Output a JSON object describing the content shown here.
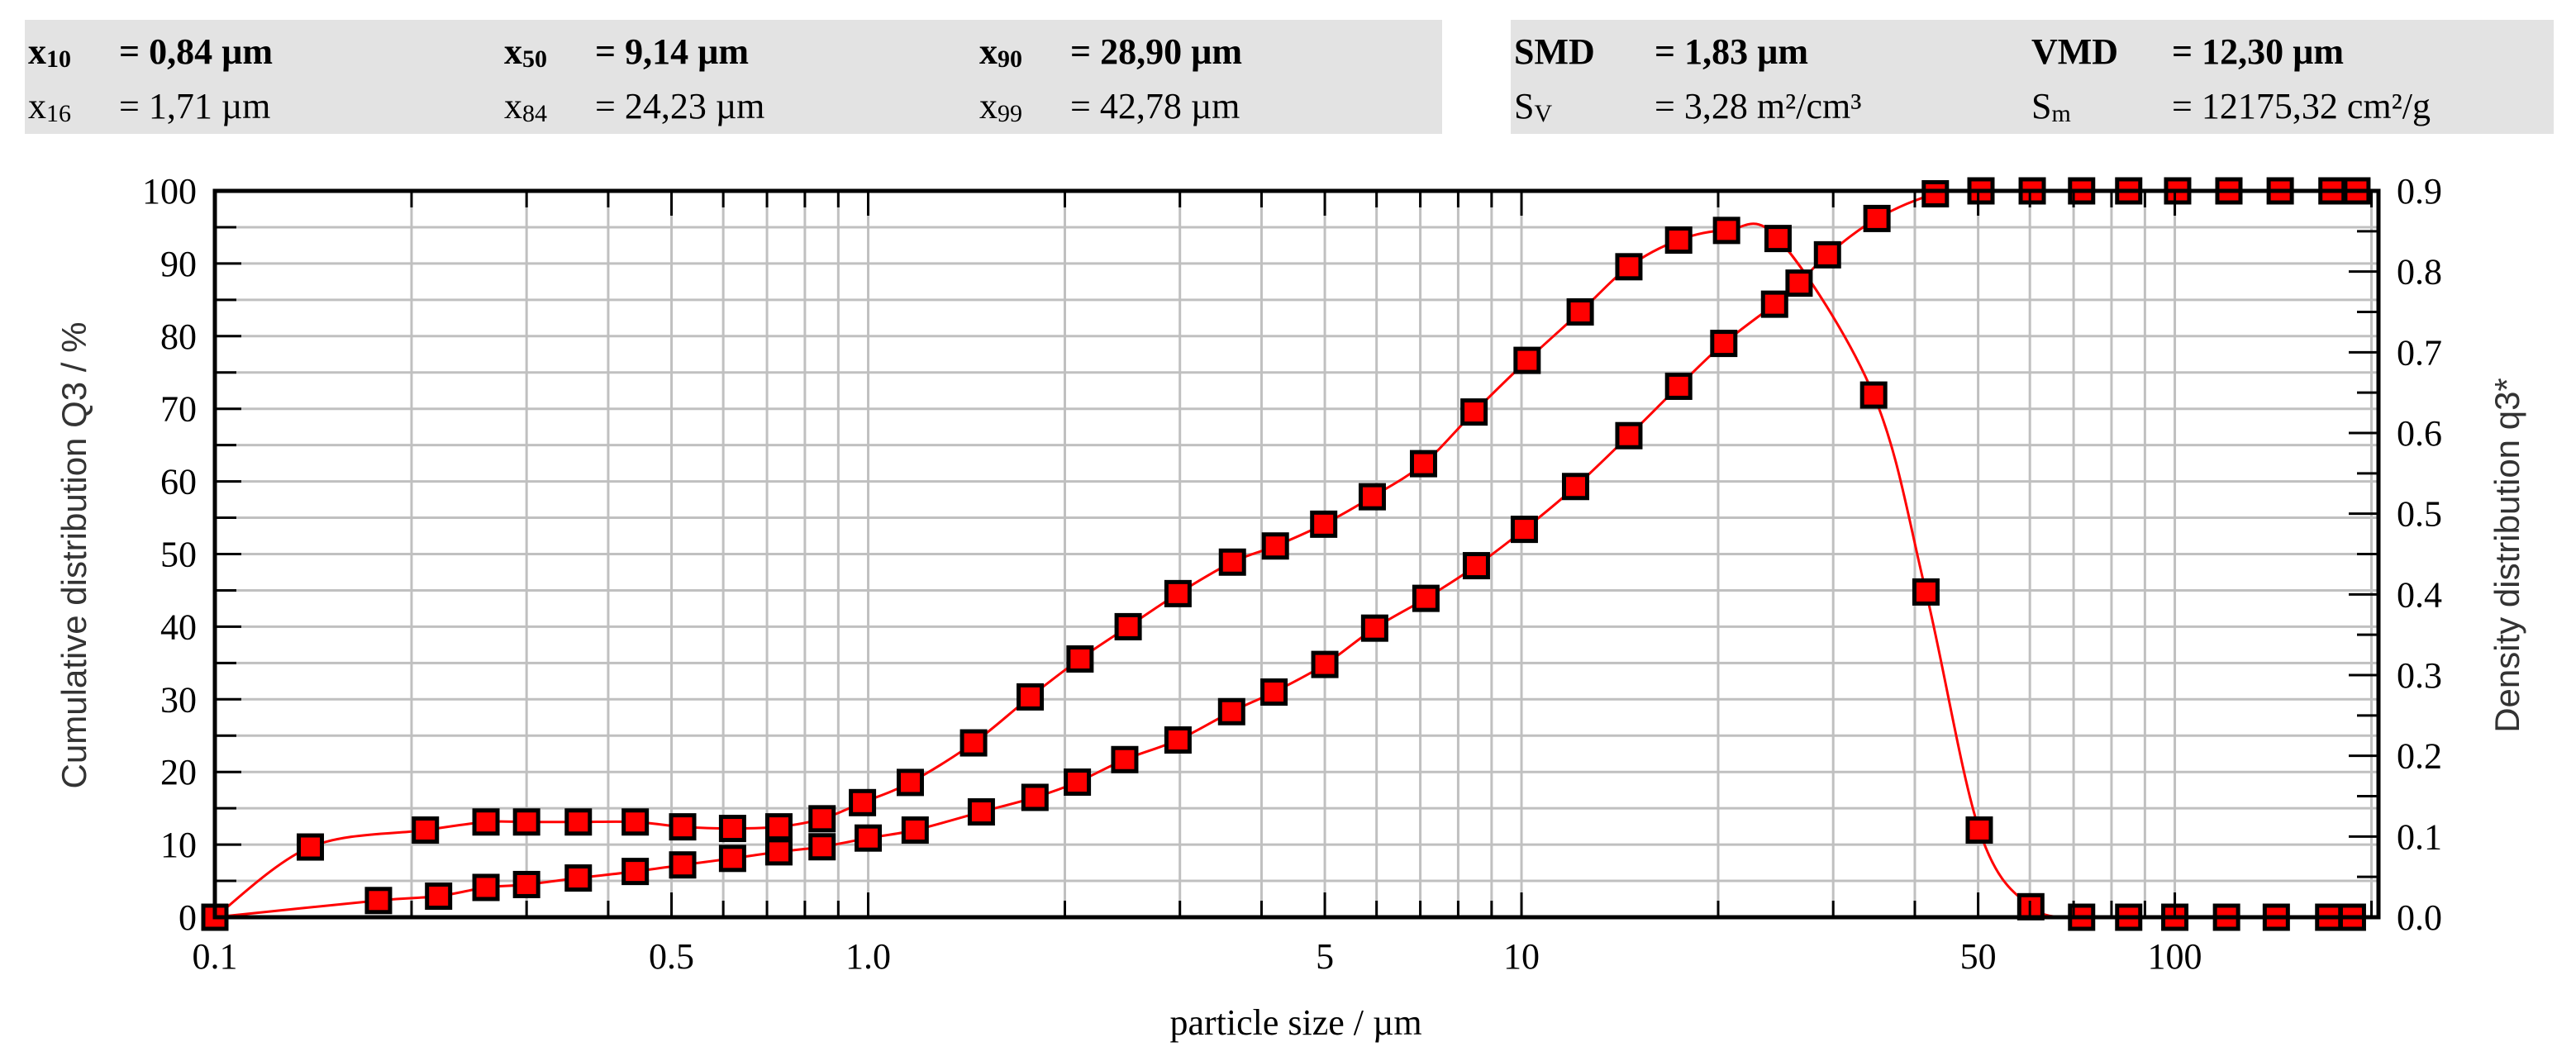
{
  "stats": {
    "left": [
      {
        "sym": "x",
        "sub": "10",
        "value": "= 0,84 µm",
        "bold": true,
        "row": 0,
        "col": 0
      },
      {
        "sym": "x",
        "sub": "50",
        "value": "= 9,14 µm",
        "bold": true,
        "row": 0,
        "col": 1
      },
      {
        "sym": "x",
        "sub": "90",
        "value": "= 28,90 µm",
        "bold": true,
        "row": 0,
        "col": 2
      },
      {
        "sym": "x",
        "sub": "16",
        "value": "= 1,71 µm",
        "bold": false,
        "row": 1,
        "col": 0
      },
      {
        "sym": "x",
        "sub": "84",
        "value": "= 24,23 µm",
        "bold": false,
        "row": 1,
        "col": 1
      },
      {
        "sym": "x",
        "sub": "99",
        "value": "= 42,78 µm",
        "bold": false,
        "row": 1,
        "col": 2
      }
    ],
    "right": [
      {
        "sym": "SMD",
        "sub": "",
        "value": "= 1,83 µm",
        "bold": true,
        "row": 0,
        "col": 0
      },
      {
        "sym": "VMD",
        "sub": "",
        "value": "= 12,30 µm",
        "bold": true,
        "row": 0,
        "col": 1
      },
      {
        "sym": "S",
        "sub": "V",
        "value": "= 3,28 m²/cm³",
        "bold": false,
        "row": 1,
        "col": 0
      },
      {
        "sym": "S",
        "sub": "m",
        "value": "= 12175,32 cm²/g",
        "bold": false,
        "row": 1,
        "col": 1
      }
    ]
  },
  "colors": {
    "series": "#ff0000",
    "marker_fill": "#ff0000",
    "marker_stroke": "#000000",
    "grid": "#c0c0c0",
    "stats_bg": "#e3e3e3"
  },
  "chart_data": {
    "type": "line",
    "title": "",
    "xlabel": "particle size / µm",
    "ylabel": "Cumulative distribution Q3 / %",
    "y2label": "Density distribution q3*",
    "xscale": "log",
    "xlim": [
      0.1,
      205
    ],
    "ylim": [
      0,
      100
    ],
    "y2lim": [
      0,
      0.9
    ],
    "grid": true,
    "legend": null,
    "x_tick_labels": [
      {
        "value": 0.1,
        "label": "0.1"
      },
      {
        "value": 0.5,
        "label": "0.5"
      },
      {
        "value": 1.0,
        "label": "1.0"
      },
      {
        "value": 5,
        "label": "5"
      },
      {
        "value": 10,
        "label": "10"
      },
      {
        "value": 50,
        "label": "50"
      },
      {
        "value": 100,
        "label": "100"
      }
    ],
    "y_tick_labels": [
      "0",
      "10",
      "20",
      "30",
      "40",
      "50",
      "60",
      "70",
      "80",
      "90",
      "100"
    ],
    "y2_tick_labels": [
      "0.0",
      "0.1",
      "0.2",
      "0.3",
      "0.4",
      "0.5",
      "0.6",
      "0.7",
      "0.8",
      "0.9"
    ],
    "series": [
      {
        "name": "Cumulative distribution Q3",
        "axis": "left",
        "x": [
          0.1,
          0.178,
          0.22,
          0.26,
          0.3,
          0.36,
          0.44,
          0.52,
          0.62,
          0.73,
          0.85,
          1.0,
          1.18,
          1.49,
          1.8,
          2.09,
          2.47,
          2.98,
          3.6,
          4.18,
          5.0,
          5.96,
          7.14,
          8.53,
          10.1,
          12.1,
          14.6,
          17.4,
          20.4,
          24.4,
          26.6,
          29.4,
          35.0,
          43.0,
          50.5,
          60.5,
          72.0,
          85.0,
          101,
          121,
          145,
          174,
          190
        ],
        "values": [
          0,
          2.3,
          2.9,
          4.1,
          4.5,
          5.4,
          6.3,
          7.2,
          8.1,
          9.0,
          9.7,
          10.9,
          12.0,
          14.5,
          16.5,
          18.6,
          21.7,
          24.4,
          28.3,
          31.0,
          34.8,
          39.8,
          43.9,
          48.4,
          53.4,
          59.3,
          66.3,
          73.1,
          79.0,
          84.4,
          87.3,
          91.2,
          96.2,
          99.6,
          100,
          100,
          100,
          100,
          100,
          100,
          100,
          100,
          100
        ],
        "show_marker": [
          false,
          true,
          true,
          true,
          true,
          true,
          true,
          true,
          true,
          true,
          true,
          true,
          true,
          true,
          true,
          true,
          true,
          true,
          true,
          true,
          true,
          true,
          true,
          true,
          true,
          true,
          true,
          true,
          true,
          true,
          true,
          true,
          true,
          true,
          true,
          true,
          true,
          true,
          true,
          true,
          true,
          true,
          true
        ]
      },
      {
        "name": "Density distribution q3*",
        "axis": "right",
        "x": [
          0.1,
          0.14,
          0.21,
          0.26,
          0.3,
          0.36,
          0.44,
          0.52,
          0.62,
          0.73,
          0.85,
          0.98,
          1.16,
          1.45,
          1.77,
          2.11,
          2.5,
          2.98,
          3.61,
          4.2,
          4.98,
          5.91,
          7.08,
          8.46,
          10.2,
          12.3,
          14.6,
          17.4,
          20.6,
          24.7,
          34.6,
          41.6,
          50.2,
          60.2,
          72.0,
          85.0,
          100,
          120,
          143,
          172,
          187
        ],
        "values": [
          0.0,
          0.087,
          0.108,
          0.118,
          0.118,
          0.118,
          0.118,
          0.112,
          0.11,
          0.112,
          0.122,
          0.142,
          0.167,
          0.216,
          0.273,
          0.32,
          0.36,
          0.401,
          0.44,
          0.46,
          0.487,
          0.521,
          0.562,
          0.626,
          0.69,
          0.75,
          0.806,
          0.839,
          0.851,
          0.841,
          0.647,
          0.403,
          0.108,
          0.013,
          0.0,
          0.0,
          0.0,
          0.0,
          0.0,
          0.0,
          0.0
        ]
      }
    ]
  }
}
